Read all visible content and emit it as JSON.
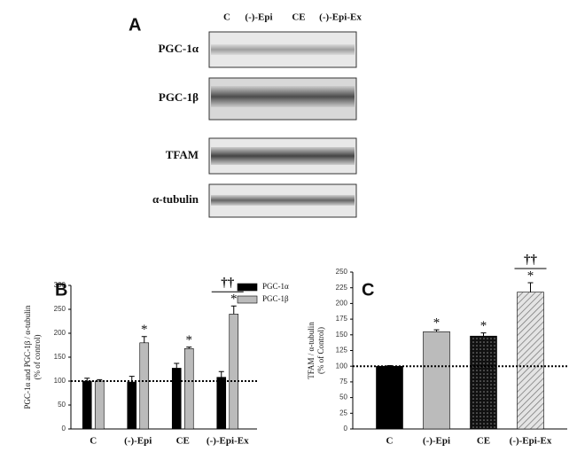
{
  "blot": {
    "panel": "A",
    "lanes": [
      "C",
      "(-)-Epi",
      "CE",
      "(-)-Epi-Ex"
    ],
    "rows": [
      "PGC-1α",
      "PGC-1β",
      "TFAM",
      "α-tubulin"
    ]
  },
  "chart_data": [
    {
      "type": "bar",
      "panel": "B",
      "y_label": "PGC-1α and PGC-1β / α-tubulin",
      "y_label_sub": "(% of control)",
      "categories": [
        "C",
        "(-)-Epi",
        "CE",
        "(-)-Epi-Ex"
      ],
      "series": [
        {
          "name": "PGC-1α",
          "color": "#000000",
          "values": [
            100,
            98,
            127,
            108
          ],
          "errors": [
            6,
            12,
            10,
            12
          ],
          "markers": [
            null,
            null,
            null,
            null
          ]
        },
        {
          "name": "PGC-1β",
          "color": "#bbbbbb",
          "values": [
            100,
            180,
            168,
            240
          ],
          "errors": [
            3,
            13,
            3,
            17
          ],
          "markers": [
            null,
            "*",
            "*",
            "*"
          ]
        }
      ],
      "group_markers": [
        null,
        null,
        null,
        "††"
      ],
      "reference_line": 100,
      "legend": "top-right",
      "ylim": [
        0,
        300
      ],
      "yticks": [
        0,
        50,
        100,
        150,
        200,
        250,
        300
      ]
    },
    {
      "type": "bar",
      "panel": "C",
      "y_label": "TFAM / α-tubulin",
      "y_label_sub": "(% of Control)",
      "categories": [
        "C",
        "(-)-Epi",
        "CE",
        "(-)-Epi-Ex"
      ],
      "series": [
        {
          "colors": [
            "#000000",
            "#bbbbbb",
            "#222222",
            "#dddddd"
          ],
          "patterns": [
            null,
            null,
            "dots",
            "hatch"
          ],
          "values": [
            100,
            155,
            148,
            218
          ],
          "errors": [
            1,
            3,
            5,
            15
          ],
          "markers": [
            null,
            "*",
            "*",
            "*"
          ]
        }
      ],
      "group_markers": [
        null,
        null,
        null,
        "††"
      ],
      "reference_line": 100,
      "ylim": [
        0,
        250
      ],
      "yticks": [
        0,
        25,
        50,
        75,
        100,
        125,
        150,
        175,
        200,
        225,
        250
      ]
    }
  ]
}
